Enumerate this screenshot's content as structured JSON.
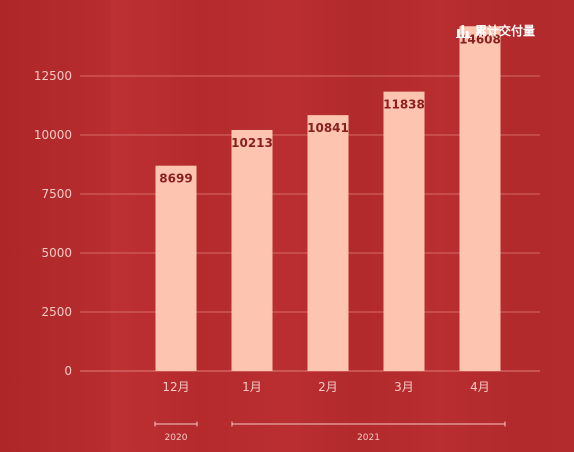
{
  "legend": {
    "label": "累计交付量",
    "icon": "bar-chart-icon"
  },
  "chart_data": {
    "type": "bar",
    "categories": [
      "12月",
      "1月",
      "2月",
      "3月",
      "4月"
    ],
    "values": [
      8699,
      10213,
      10841,
      11838,
      14608
    ],
    "y_ticks": [
      0,
      2500,
      5000,
      7500,
      10000,
      12500
    ],
    "ylim": [
      0,
      15000
    ],
    "year_groups": [
      {
        "label": "2020",
        "categories": [
          "12月"
        ]
      },
      {
        "label": "2021",
        "categories": [
          "1月",
          "2月",
          "3月",
          "4月"
        ]
      }
    ],
    "legend_position": "top-right",
    "grid": true,
    "colors": {
      "bar": "#fdc5b0",
      "value_label": "#8a1f1f",
      "axis_text": "#f5c9c4",
      "grid": "#e07a76"
    }
  }
}
